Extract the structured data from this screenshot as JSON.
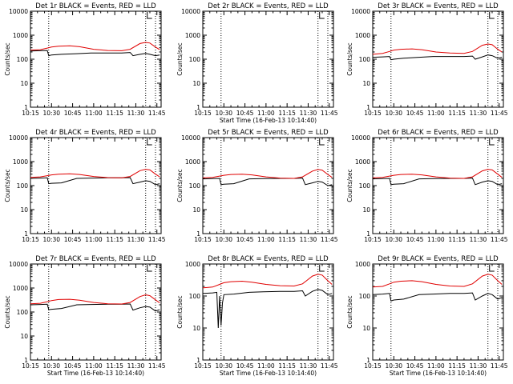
{
  "chart_data": [
    {
      "type": "line",
      "title": "Det 1r BLACK = Events, RED = LLD",
      "xlabel": "",
      "ylabel": "Counts/sec",
      "yscale": "log",
      "ylim": [
        1,
        10000
      ],
      "yticks": [
        "1",
        "10",
        "100",
        "1000",
        "10000"
      ],
      "xticks": [
        "10:15",
        "10:30",
        "10:45",
        "11:00",
        "11:15",
        "11:30",
        "11:45"
      ],
      "xlim_minutes": [
        15,
        108
      ],
      "vlines_minutes": [
        28,
        97,
        104
      ],
      "marker": "E",
      "series": [
        {
          "name": "BLACK",
          "color": "#000000",
          "x": [
            15,
            22,
            27,
            28,
            30,
            37,
            48,
            58,
            70,
            80,
            86,
            88,
            93,
            97,
            100,
            104,
            107
          ],
          "y": [
            220,
            225,
            230,
            140,
            150,
            160,
            170,
            180,
            180,
            180,
            190,
            140,
            160,
            175,
            160,
            140,
            150
          ]
        },
        {
          "name": "RED",
          "color": "#e00000",
          "x": [
            15,
            22,
            27,
            30,
            35,
            43,
            50,
            60,
            70,
            80,
            86,
            93,
            97,
            100,
            104,
            107
          ],
          "y": [
            240,
            250,
            290,
            320,
            350,
            360,
            330,
            260,
            230,
            225,
            260,
            450,
            500,
            470,
            320,
            250
          ]
        }
      ]
    },
    {
      "type": "line",
      "title": "Det 2r BLACK = Events, RED = LLD",
      "xlabel": "Start Time (16-Feb-13 10:14:40)",
      "ylabel": "Counts/sec",
      "yscale": "log",
      "ylim": [
        1,
        10000
      ],
      "yticks": [
        "1",
        "10",
        "100",
        "1000",
        "10000"
      ],
      "xticks": [
        "10:15",
        "10:30",
        "10:45",
        "11:00",
        "11:15",
        "11:30",
        "11:45"
      ],
      "xlim_minutes": [
        15,
        108
      ],
      "vlines_minutes": [
        28,
        97,
        104
      ],
      "marker": "E",
      "series": []
    },
    {
      "type": "line",
      "title": "Det 3r BLACK = Events, RED = LLD",
      "xlabel": "",
      "ylabel": "Counts/sec",
      "yscale": "log",
      "ylim": [
        1,
        10000
      ],
      "yticks": [
        "1",
        "10",
        "100",
        "1000",
        "10000"
      ],
      "xticks": [
        "10:15",
        "10:30",
        "10:45",
        "11:00",
        "11:15",
        "11:30",
        "11:45"
      ],
      "xlim_minutes": [
        15,
        108
      ],
      "vlines_minutes": [
        28,
        97,
        104
      ],
      "marker": "E",
      "series": [
        {
          "name": "BLACK",
          "color": "#000000",
          "x": [
            15,
            22,
            27,
            28,
            30,
            37,
            48,
            58,
            70,
            80,
            86,
            88,
            93,
            97,
            100,
            104,
            107
          ],
          "y": [
            120,
            125,
            130,
            95,
            100,
            110,
            120,
            130,
            130,
            130,
            135,
            100,
            125,
            150,
            140,
            110,
            120
          ]
        },
        {
          "name": "RED",
          "color": "#e00000",
          "x": [
            15,
            22,
            27,
            30,
            35,
            43,
            50,
            60,
            70,
            80,
            86,
            93,
            97,
            100,
            104,
            107
          ],
          "y": [
            160,
            175,
            210,
            240,
            260,
            270,
            250,
            200,
            180,
            175,
            210,
            380,
            430,
            400,
            260,
            200
          ]
        }
      ]
    },
    {
      "type": "line",
      "title": "Det 4r BLACK = Events, RED = LLD",
      "xlabel": "",
      "ylabel": "Counts/sec",
      "yscale": "log",
      "ylim": [
        1,
        10000
      ],
      "yticks": [
        "1",
        "10",
        "100",
        "1000",
        "10000"
      ],
      "xticks": [
        "10:15",
        "10:30",
        "10:45",
        "11:00",
        "11:15",
        "11:30",
        "11:45"
      ],
      "xlim_minutes": [
        15,
        108
      ],
      "vlines_minutes": [
        28,
        97,
        104
      ],
      "marker": "E",
      "series": [
        {
          "name": "BLACK",
          "color": "#000000",
          "x": [
            15,
            22,
            27,
            28,
            30,
            37,
            48,
            58,
            70,
            80,
            86,
            88,
            93,
            97,
            100,
            104,
            107
          ],
          "y": [
            200,
            205,
            210,
            120,
            125,
            130,
            200,
            205,
            210,
            210,
            215,
            120,
            140,
            160,
            150,
            110,
            120
          ]
        },
        {
          "name": "RED",
          "color": "#e00000",
          "x": [
            15,
            22,
            27,
            30,
            35,
            43,
            50,
            60,
            70,
            80,
            86,
            93,
            97,
            100,
            104,
            107
          ],
          "y": [
            220,
            230,
            260,
            280,
            300,
            310,
            290,
            240,
            215,
            210,
            240,
            420,
            480,
            450,
            300,
            230
          ]
        }
      ]
    },
    {
      "type": "line",
      "title": "Det 5r BLACK = Events, RED = LLD",
      "xlabel": "",
      "ylabel": "Counts/sec",
      "yscale": "log",
      "ylim": [
        1,
        10000
      ],
      "yticks": [
        "1",
        "10",
        "100",
        "1000",
        "10000"
      ],
      "xticks": [
        "10:15",
        "10:30",
        "10:45",
        "11:00",
        "11:15",
        "11:30",
        "11:45"
      ],
      "xlim_minutes": [
        15,
        108
      ],
      "vlines_minutes": [
        28,
        97,
        104
      ],
      "marker": "E",
      "series": [
        {
          "name": "BLACK",
          "color": "#000000",
          "x": [
            15,
            22,
            27,
            28,
            30,
            37,
            48,
            58,
            70,
            80,
            86,
            88,
            93,
            97,
            100,
            104,
            107
          ],
          "y": [
            190,
            195,
            200,
            110,
            115,
            120,
            190,
            195,
            200,
            200,
            205,
            110,
            130,
            150,
            140,
            100,
            110
          ]
        },
        {
          "name": "RED",
          "color": "#e00000",
          "x": [
            15,
            22,
            27,
            30,
            35,
            43,
            50,
            60,
            70,
            80,
            86,
            93,
            97,
            100,
            104,
            107
          ],
          "y": [
            210,
            220,
            250,
            270,
            290,
            300,
            280,
            230,
            205,
            200,
            230,
            400,
            470,
            440,
            290,
            220
          ]
        }
      ]
    },
    {
      "type": "line",
      "title": "Det 6r BLACK = Events, RED = LLD",
      "xlabel": "",
      "ylabel": "Counts/sec",
      "yscale": "log",
      "ylim": [
        1,
        10000
      ],
      "yticks": [
        "1",
        "10",
        "100",
        "1000",
        "10000"
      ],
      "xticks": [
        "10:15",
        "10:30",
        "10:45",
        "11:00",
        "11:15",
        "11:30",
        "11:45"
      ],
      "xlim_minutes": [
        15,
        108
      ],
      "vlines_minutes": [
        28,
        97,
        104
      ],
      "marker": "E",
      "series": [
        {
          "name": "BLACK",
          "color": "#000000",
          "x": [
            15,
            22,
            27,
            28,
            30,
            37,
            48,
            58,
            70,
            80,
            86,
            88,
            93,
            97,
            100,
            104,
            107
          ],
          "y": [
            190,
            195,
            200,
            110,
            115,
            120,
            190,
            195,
            200,
            200,
            205,
            110,
            140,
            160,
            150,
            110,
            120
          ]
        },
        {
          "name": "RED",
          "color": "#e00000",
          "x": [
            15,
            22,
            27,
            30,
            35,
            43,
            50,
            60,
            70,
            80,
            86,
            93,
            97,
            100,
            104,
            107
          ],
          "y": [
            210,
            220,
            250,
            270,
            290,
            300,
            280,
            230,
            205,
            200,
            230,
            410,
            480,
            450,
            300,
            220
          ]
        }
      ]
    },
    {
      "type": "line",
      "title": "Det 7r BLACK = Events, RED = LLD",
      "xlabel": "Start Time (16-Feb-13 10:14:40)",
      "ylabel": "Counts/sec",
      "yscale": "log",
      "ylim": [
        1,
        10000
      ],
      "yticks": [
        "1",
        "10",
        "100",
        "1000",
        "10000"
      ],
      "xticks": [
        "10:15",
        "10:30",
        "10:45",
        "11:00",
        "11:15",
        "11:30",
        "11:45"
      ],
      "xlim_minutes": [
        15,
        108
      ],
      "vlines_minutes": [
        28,
        97,
        104
      ],
      "marker": "E",
      "series": [
        {
          "name": "BLACK",
          "color": "#000000",
          "x": [
            15,
            22,
            27,
            28,
            30,
            37,
            48,
            58,
            70,
            80,
            86,
            88,
            93,
            97,
            100,
            104,
            107
          ],
          "y": [
            200,
            205,
            210,
            125,
            130,
            140,
            200,
            205,
            210,
            210,
            215,
            120,
            150,
            170,
            160,
            110,
            125
          ]
        },
        {
          "name": "RED",
          "color": "#e00000",
          "x": [
            15,
            22,
            27,
            30,
            35,
            43,
            50,
            60,
            70,
            80,
            86,
            93,
            97,
            100,
            104,
            107
          ],
          "y": [
            220,
            230,
            270,
            300,
            330,
            340,
            310,
            250,
            220,
            215,
            250,
            440,
            520,
            480,
            320,
            240
          ]
        }
      ]
    },
    {
      "type": "line",
      "title": "Det 8r BLACK = Events, RED = LLD",
      "xlabel": "Start Time (16-Feb-13 10:14:40)",
      "ylabel": "Counts/sec",
      "yscale": "log",
      "ylim": [
        1,
        1000
      ],
      "yticks": [
        "1",
        "10",
        "100",
        "1000"
      ],
      "xticks": [
        "10:15",
        "10:30",
        "10:45",
        "11:00",
        "11:15",
        "11:30",
        "11:45"
      ],
      "xlim_minutes": [
        15,
        108
      ],
      "vlines_minutes": [
        28,
        97,
        104
      ],
      "marker": "E",
      "series": [
        {
          "name": "BLACK",
          "color": "#000000",
          "x": [
            15,
            22,
            25,
            26,
            27,
            28,
            29,
            30,
            37,
            48,
            58,
            70,
            80,
            86,
            88,
            93,
            97,
            100,
            104,
            107
          ],
          "y": [
            120,
            125,
            130,
            10,
            100,
            12,
            60,
            110,
            115,
            130,
            135,
            140,
            140,
            145,
            100,
            140,
            160,
            150,
            110,
            120
          ]
        },
        {
          "name": "RED",
          "color": "#e00000",
          "x": [
            15,
            22,
            27,
            30,
            35,
            43,
            50,
            60,
            70,
            80,
            86,
            93,
            97,
            100,
            104,
            107
          ],
          "y": [
            180,
            190,
            230,
            260,
            280,
            290,
            270,
            230,
            210,
            205,
            240,
            420,
            480,
            450,
            300,
            230
          ]
        }
      ]
    },
    {
      "type": "line",
      "title": "Det 9r BLACK = Events, RED = LLD",
      "xlabel": "Start Time (16-Feb-13 10:14:40)",
      "ylabel": "Counts/sec",
      "yscale": "log",
      "ylim": [
        1,
        1000
      ],
      "yticks": [
        "1",
        "10",
        "100",
        "1000"
      ],
      "xticks": [
        "10:15",
        "10:30",
        "10:45",
        "11:00",
        "11:15",
        "11:30",
        "11:45"
      ],
      "xlim_minutes": [
        15,
        108
      ],
      "vlines_minutes": [
        28,
        97,
        104
      ],
      "marker": "E",
      "series": [
        {
          "name": "BLACK",
          "color": "#000000",
          "x": [
            15,
            22,
            27,
            28,
            30,
            37,
            48,
            58,
            70,
            80,
            86,
            88,
            93,
            97,
            100,
            104,
            107
          ],
          "y": [
            110,
            115,
            120,
            70,
            75,
            80,
            110,
            115,
            120,
            120,
            125,
            75,
            100,
            120,
            110,
            80,
            90
          ]
        },
        {
          "name": "RED",
          "color": "#e00000",
          "x": [
            15,
            22,
            27,
            30,
            35,
            43,
            50,
            60,
            70,
            80,
            86,
            93,
            97,
            100,
            104,
            107
          ],
          "y": [
            190,
            200,
            240,
            270,
            290,
            300,
            280,
            230,
            205,
            200,
            240,
            420,
            480,
            450,
            300,
            230
          ]
        }
      ]
    }
  ]
}
